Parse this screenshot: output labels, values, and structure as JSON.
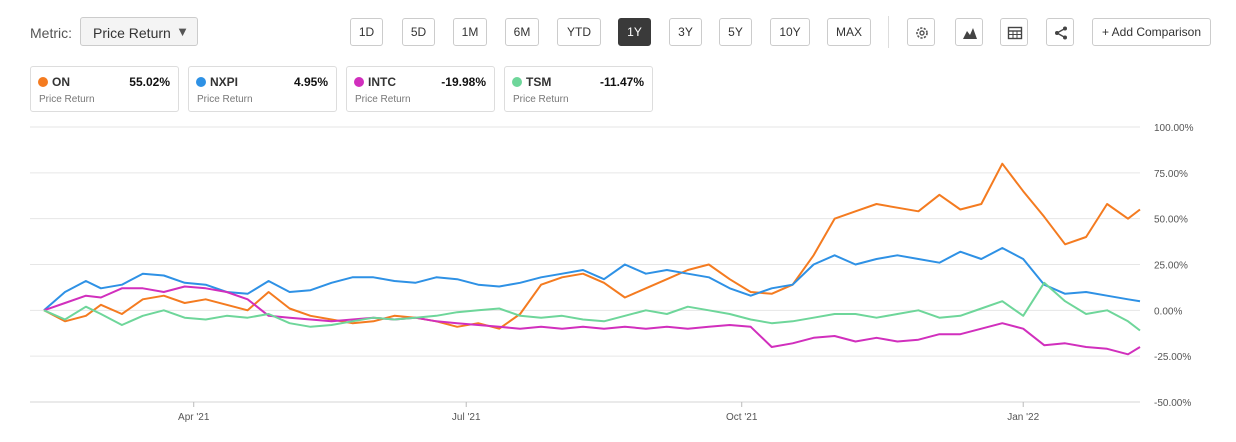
{
  "toolbar": {
    "metric_label": "Metric:",
    "metric_value": "Price Return",
    "ranges": [
      "1D",
      "5D",
      "1M",
      "6M",
      "YTD",
      "1Y",
      "3Y",
      "5Y",
      "10Y",
      "MAX"
    ],
    "active_range": "1Y",
    "add_comparison": "+ Add Comparison",
    "icons": [
      "gear-icon",
      "mountain-chart-icon",
      "table-icon",
      "share-icon"
    ]
  },
  "legend": [
    {
      "ticker": "ON",
      "value": "55.02%",
      "sub": "Price Return",
      "color": "#f47b20"
    },
    {
      "ticker": "NXPI",
      "value": "4.95%",
      "sub": "Price Return",
      "color": "#2e91e5"
    },
    {
      "ticker": "INTC",
      "value": "-19.98%",
      "sub": "Price Return",
      "color": "#d12fbd"
    },
    {
      "ticker": "TSM",
      "value": "-11.47%",
      "sub": "Price Return",
      "color": "#6ed69a"
    }
  ],
  "chart_data": {
    "type": "line",
    "title": "",
    "xlabel": "",
    "ylabel": "",
    "x_range": [
      "2021-02-10",
      "2022-02-11"
    ],
    "x_ticks": [
      {
        "label": "Apr '21",
        "date": "2021-04-01"
      },
      {
        "label": "Jul '21",
        "date": "2021-07-01"
      },
      {
        "label": "Oct '21",
        "date": "2021-10-01"
      },
      {
        "label": "Jan '22",
        "date": "2022-01-03"
      }
    ],
    "ylim": [
      -50,
      100
    ],
    "y_ticks": [
      {
        "label": "100.00%",
        "value": 100
      },
      {
        "label": "75.00%",
        "value": 75
      },
      {
        "label": "50.00%",
        "value": 50
      },
      {
        "label": "25.00%",
        "value": 25
      },
      {
        "label": "0.00%",
        "value": 0
      },
      {
        "label": "-25.00%",
        "value": -25
      },
      {
        "label": "-50.00%",
        "value": -50
      }
    ],
    "grid": true,
    "series": [
      {
        "name": "ON",
        "color": "#f47b20",
        "points": [
          [
            "2021-02-10",
            0
          ],
          [
            "2021-02-17",
            -6
          ],
          [
            "2021-02-24",
            -3
          ],
          [
            "2021-03-01",
            3
          ],
          [
            "2021-03-08",
            -2
          ],
          [
            "2021-03-15",
            6
          ],
          [
            "2021-03-22",
            8
          ],
          [
            "2021-03-29",
            4
          ],
          [
            "2021-04-05",
            6
          ],
          [
            "2021-04-12",
            3
          ],
          [
            "2021-04-19",
            0
          ],
          [
            "2021-04-26",
            10
          ],
          [
            "2021-05-03",
            1
          ],
          [
            "2021-05-10",
            -3
          ],
          [
            "2021-05-17",
            -5
          ],
          [
            "2021-05-24",
            -7
          ],
          [
            "2021-05-31",
            -6
          ],
          [
            "2021-06-07",
            -3
          ],
          [
            "2021-06-14",
            -4
          ],
          [
            "2021-06-21",
            -6
          ],
          [
            "2021-06-28",
            -9
          ],
          [
            "2021-07-05",
            -7
          ],
          [
            "2021-07-12",
            -10
          ],
          [
            "2021-07-19",
            -2
          ],
          [
            "2021-07-26",
            14
          ],
          [
            "2021-08-02",
            18
          ],
          [
            "2021-08-09",
            20
          ],
          [
            "2021-08-16",
            15
          ],
          [
            "2021-08-23",
            7
          ],
          [
            "2021-08-30",
            12
          ],
          [
            "2021-09-06",
            17
          ],
          [
            "2021-09-13",
            22
          ],
          [
            "2021-09-20",
            25
          ],
          [
            "2021-09-27",
            17
          ],
          [
            "2021-10-04",
            10
          ],
          [
            "2021-10-11",
            9
          ],
          [
            "2021-10-18",
            14
          ],
          [
            "2021-10-25",
            30
          ],
          [
            "2021-11-01",
            50
          ],
          [
            "2021-11-08",
            54
          ],
          [
            "2021-11-15",
            58
          ],
          [
            "2021-11-22",
            56
          ],
          [
            "2021-11-29",
            54
          ],
          [
            "2021-12-06",
            63
          ],
          [
            "2021-12-13",
            55
          ],
          [
            "2021-12-20",
            58
          ],
          [
            "2021-12-27",
            80
          ],
          [
            "2022-01-03",
            65
          ],
          [
            "2022-01-10",
            51
          ],
          [
            "2022-01-17",
            36
          ],
          [
            "2022-01-24",
            40
          ],
          [
            "2022-01-31",
            58
          ],
          [
            "2022-02-07",
            50
          ],
          [
            "2022-02-11",
            55
          ]
        ]
      },
      {
        "name": "NXPI",
        "color": "#2e91e5",
        "points": [
          [
            "2021-02-10",
            0
          ],
          [
            "2021-02-17",
            10
          ],
          [
            "2021-02-24",
            16
          ],
          [
            "2021-03-01",
            12
          ],
          [
            "2021-03-08",
            14
          ],
          [
            "2021-03-15",
            20
          ],
          [
            "2021-03-22",
            19
          ],
          [
            "2021-03-29",
            15
          ],
          [
            "2021-04-05",
            14
          ],
          [
            "2021-04-12",
            10
          ],
          [
            "2021-04-19",
            9
          ],
          [
            "2021-04-26",
            16
          ],
          [
            "2021-05-03",
            10
          ],
          [
            "2021-05-10",
            11
          ],
          [
            "2021-05-17",
            15
          ],
          [
            "2021-05-24",
            18
          ],
          [
            "2021-05-31",
            18
          ],
          [
            "2021-06-07",
            16
          ],
          [
            "2021-06-14",
            15
          ],
          [
            "2021-06-21",
            18
          ],
          [
            "2021-06-28",
            17
          ],
          [
            "2021-07-05",
            14
          ],
          [
            "2021-07-12",
            13
          ],
          [
            "2021-07-19",
            15
          ],
          [
            "2021-07-26",
            18
          ],
          [
            "2021-08-02",
            20
          ],
          [
            "2021-08-09",
            22
          ],
          [
            "2021-08-16",
            17
          ],
          [
            "2021-08-23",
            25
          ],
          [
            "2021-08-30",
            20
          ],
          [
            "2021-09-06",
            22
          ],
          [
            "2021-09-13",
            20
          ],
          [
            "2021-09-20",
            18
          ],
          [
            "2021-09-27",
            12
          ],
          [
            "2021-10-04",
            8
          ],
          [
            "2021-10-11",
            12
          ],
          [
            "2021-10-18",
            14
          ],
          [
            "2021-10-25",
            25
          ],
          [
            "2021-11-01",
            30
          ],
          [
            "2021-11-08",
            25
          ],
          [
            "2021-11-15",
            28
          ],
          [
            "2021-11-22",
            30
          ],
          [
            "2021-11-29",
            28
          ],
          [
            "2021-12-06",
            26
          ],
          [
            "2021-12-13",
            32
          ],
          [
            "2021-12-20",
            28
          ],
          [
            "2021-12-27",
            34
          ],
          [
            "2022-01-03",
            28
          ],
          [
            "2022-01-10",
            14
          ],
          [
            "2022-01-17",
            9
          ],
          [
            "2022-01-24",
            10
          ],
          [
            "2022-01-31",
            8
          ],
          [
            "2022-02-07",
            6
          ],
          [
            "2022-02-11",
            5
          ]
        ]
      },
      {
        "name": "INTC",
        "color": "#d12fbd",
        "points": [
          [
            "2021-02-10",
            0
          ],
          [
            "2021-02-17",
            4
          ],
          [
            "2021-02-24",
            8
          ],
          [
            "2021-03-01",
            7
          ],
          [
            "2021-03-08",
            12
          ],
          [
            "2021-03-15",
            12
          ],
          [
            "2021-03-22",
            10
          ],
          [
            "2021-03-29",
            13
          ],
          [
            "2021-04-05",
            12
          ],
          [
            "2021-04-12",
            10
          ],
          [
            "2021-04-19",
            6
          ],
          [
            "2021-04-26",
            -3
          ],
          [
            "2021-05-03",
            -4
          ],
          [
            "2021-05-10",
            -5
          ],
          [
            "2021-05-17",
            -6
          ],
          [
            "2021-05-24",
            -5
          ],
          [
            "2021-05-31",
            -4
          ],
          [
            "2021-06-07",
            -5
          ],
          [
            "2021-06-14",
            -4
          ],
          [
            "2021-06-21",
            -6
          ],
          [
            "2021-06-28",
            -7
          ],
          [
            "2021-07-05",
            -8
          ],
          [
            "2021-07-12",
            -9
          ],
          [
            "2021-07-19",
            -10
          ],
          [
            "2021-07-26",
            -9
          ],
          [
            "2021-08-02",
            -10
          ],
          [
            "2021-08-09",
            -9
          ],
          [
            "2021-08-16",
            -10
          ],
          [
            "2021-08-23",
            -9
          ],
          [
            "2021-08-30",
            -10
          ],
          [
            "2021-09-06",
            -9
          ],
          [
            "2021-09-13",
            -10
          ],
          [
            "2021-09-20",
            -9
          ],
          [
            "2021-09-27",
            -8
          ],
          [
            "2021-10-04",
            -9
          ],
          [
            "2021-10-11",
            -20
          ],
          [
            "2021-10-18",
            -18
          ],
          [
            "2021-10-25",
            -15
          ],
          [
            "2021-11-01",
            -14
          ],
          [
            "2021-11-08",
            -17
          ],
          [
            "2021-11-15",
            -15
          ],
          [
            "2021-11-22",
            -17
          ],
          [
            "2021-11-29",
            -16
          ],
          [
            "2021-12-06",
            -13
          ],
          [
            "2021-12-13",
            -13
          ],
          [
            "2021-12-20",
            -10
          ],
          [
            "2021-12-27",
            -7
          ],
          [
            "2022-01-03",
            -10
          ],
          [
            "2022-01-10",
            -19
          ],
          [
            "2022-01-17",
            -18
          ],
          [
            "2022-01-24",
            -20
          ],
          [
            "2022-01-31",
            -21
          ],
          [
            "2022-02-07",
            -24
          ],
          [
            "2022-02-11",
            -20
          ]
        ]
      },
      {
        "name": "TSM",
        "color": "#6ed69a",
        "points": [
          [
            "2021-02-10",
            0
          ],
          [
            "2021-02-17",
            -5
          ],
          [
            "2021-02-24",
            2
          ],
          [
            "2021-03-01",
            -2
          ],
          [
            "2021-03-08",
            -8
          ],
          [
            "2021-03-15",
            -3
          ],
          [
            "2021-03-22",
            0
          ],
          [
            "2021-03-29",
            -4
          ],
          [
            "2021-04-05",
            -5
          ],
          [
            "2021-04-12",
            -3
          ],
          [
            "2021-04-19",
            -4
          ],
          [
            "2021-04-26",
            -2
          ],
          [
            "2021-05-03",
            -7
          ],
          [
            "2021-05-10",
            -9
          ],
          [
            "2021-05-17",
            -8
          ],
          [
            "2021-05-24",
            -6
          ],
          [
            "2021-05-31",
            -4
          ],
          [
            "2021-06-07",
            -5
          ],
          [
            "2021-06-14",
            -4
          ],
          [
            "2021-06-21",
            -3
          ],
          [
            "2021-06-28",
            -1
          ],
          [
            "2021-07-05",
            0
          ],
          [
            "2021-07-12",
            1
          ],
          [
            "2021-07-19",
            -3
          ],
          [
            "2021-07-26",
            -4
          ],
          [
            "2021-08-02",
            -3
          ],
          [
            "2021-08-09",
            -5
          ],
          [
            "2021-08-16",
            -6
          ],
          [
            "2021-08-23",
            -3
          ],
          [
            "2021-08-30",
            0
          ],
          [
            "2021-09-06",
            -2
          ],
          [
            "2021-09-13",
            2
          ],
          [
            "2021-09-20",
            0
          ],
          [
            "2021-09-27",
            -2
          ],
          [
            "2021-10-04",
            -5
          ],
          [
            "2021-10-11",
            -7
          ],
          [
            "2021-10-18",
            -6
          ],
          [
            "2021-10-25",
            -4
          ],
          [
            "2021-11-01",
            -2
          ],
          [
            "2021-11-08",
            -2
          ],
          [
            "2021-11-15",
            -4
          ],
          [
            "2021-11-22",
            -2
          ],
          [
            "2021-11-29",
            0
          ],
          [
            "2021-12-06",
            -4
          ],
          [
            "2021-12-13",
            -3
          ],
          [
            "2021-12-20",
            1
          ],
          [
            "2021-12-27",
            5
          ],
          [
            "2022-01-03",
            -3
          ],
          [
            "2022-01-10",
            15
          ],
          [
            "2022-01-17",
            5
          ],
          [
            "2022-01-24",
            -2
          ],
          [
            "2022-01-31",
            0
          ],
          [
            "2022-02-07",
            -6
          ],
          [
            "2022-02-11",
            -11
          ]
        ]
      }
    ]
  }
}
